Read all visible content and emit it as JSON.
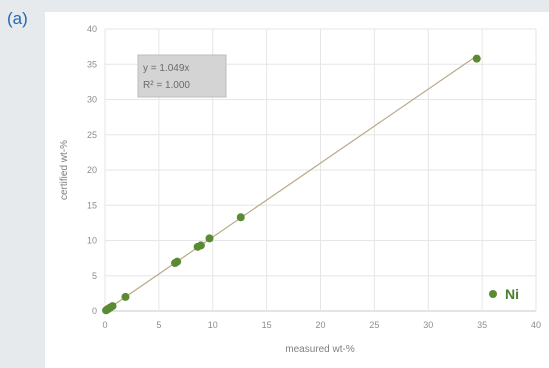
{
  "panel_label": "(a)",
  "chart_data": {
    "type": "scatter",
    "title": "",
    "xlabel": "measured wt-%",
    "ylabel": "certified wt-%",
    "xlim": [
      0,
      40
    ],
    "ylim": [
      0,
      40
    ],
    "x_ticks": [
      "0",
      "5",
      "10",
      "15",
      "20",
      "25",
      "30",
      "35",
      "40"
    ],
    "y_ticks": [
      "0",
      "5",
      "10",
      "15",
      "20",
      "25",
      "30",
      "35",
      "40"
    ],
    "grid": true,
    "legend": {
      "position": "bottom-right",
      "entries": [
        "Ni"
      ]
    },
    "series": [
      {
        "name": "Ni",
        "color": "#5a8a32",
        "points": [
          [
            0.1,
            0.1
          ],
          [
            0.2,
            0.2
          ],
          [
            0.3,
            0.3
          ],
          [
            0.4,
            0.4
          ],
          [
            0.5,
            0.5
          ],
          [
            0.7,
            0.7
          ],
          [
            1.9,
            2.0
          ],
          [
            6.5,
            6.8
          ],
          [
            6.7,
            7.0
          ],
          [
            8.6,
            9.1
          ],
          [
            8.9,
            9.3
          ],
          [
            9.7,
            10.3
          ],
          [
            12.6,
            13.3
          ],
          [
            34.5,
            35.8
          ]
        ]
      }
    ],
    "trendline": {
      "slope": 1.049,
      "color": "#b8a98a",
      "equation": "y = 1.049x",
      "r_squared": "R² = 1.000"
    }
  }
}
